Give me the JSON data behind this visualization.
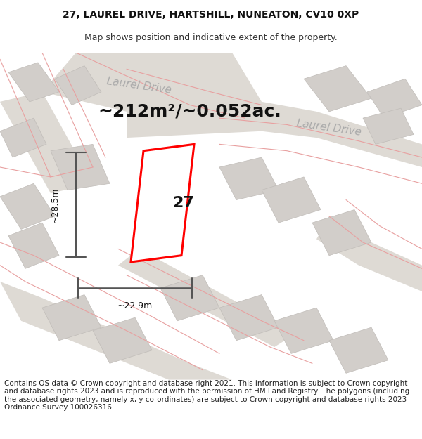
{
  "title_line1": "27, LAUREL DRIVE, HARTSHILL, NUNEATON, CV10 0XP",
  "title_line2": "Map shows position and indicative extent of the property.",
  "area_text": "~212m²/~0.052ac.",
  "width_label": "~22.9m",
  "height_label": "~28.5m",
  "property_number": "27",
  "footer_text": "Contains OS data © Crown copyright and database right 2021. This information is subject to Crown copyright and database rights 2023 and is reproduced with the permission of HM Land Registry. The polygons (including the associated geometry, namely x, y co-ordinates) are subject to Crown copyright and database rights 2023 Ordnance Survey 100026316.",
  "bg_color": "#f5f3f0",
  "map_bg": "#f0ede8",
  "building_color": "#d8d5d0",
  "road_color": "#e8e5e0",
  "highlight_color": "#ff0000",
  "street_label_color": "#aaaaaa",
  "dim_line_color": "#555555",
  "title_fontsize": 10,
  "subtitle_fontsize": 9,
  "area_fontsize": 18,
  "label_fontsize": 9,
  "footer_fontsize": 7.5,
  "street_label_fontsize": 11
}
